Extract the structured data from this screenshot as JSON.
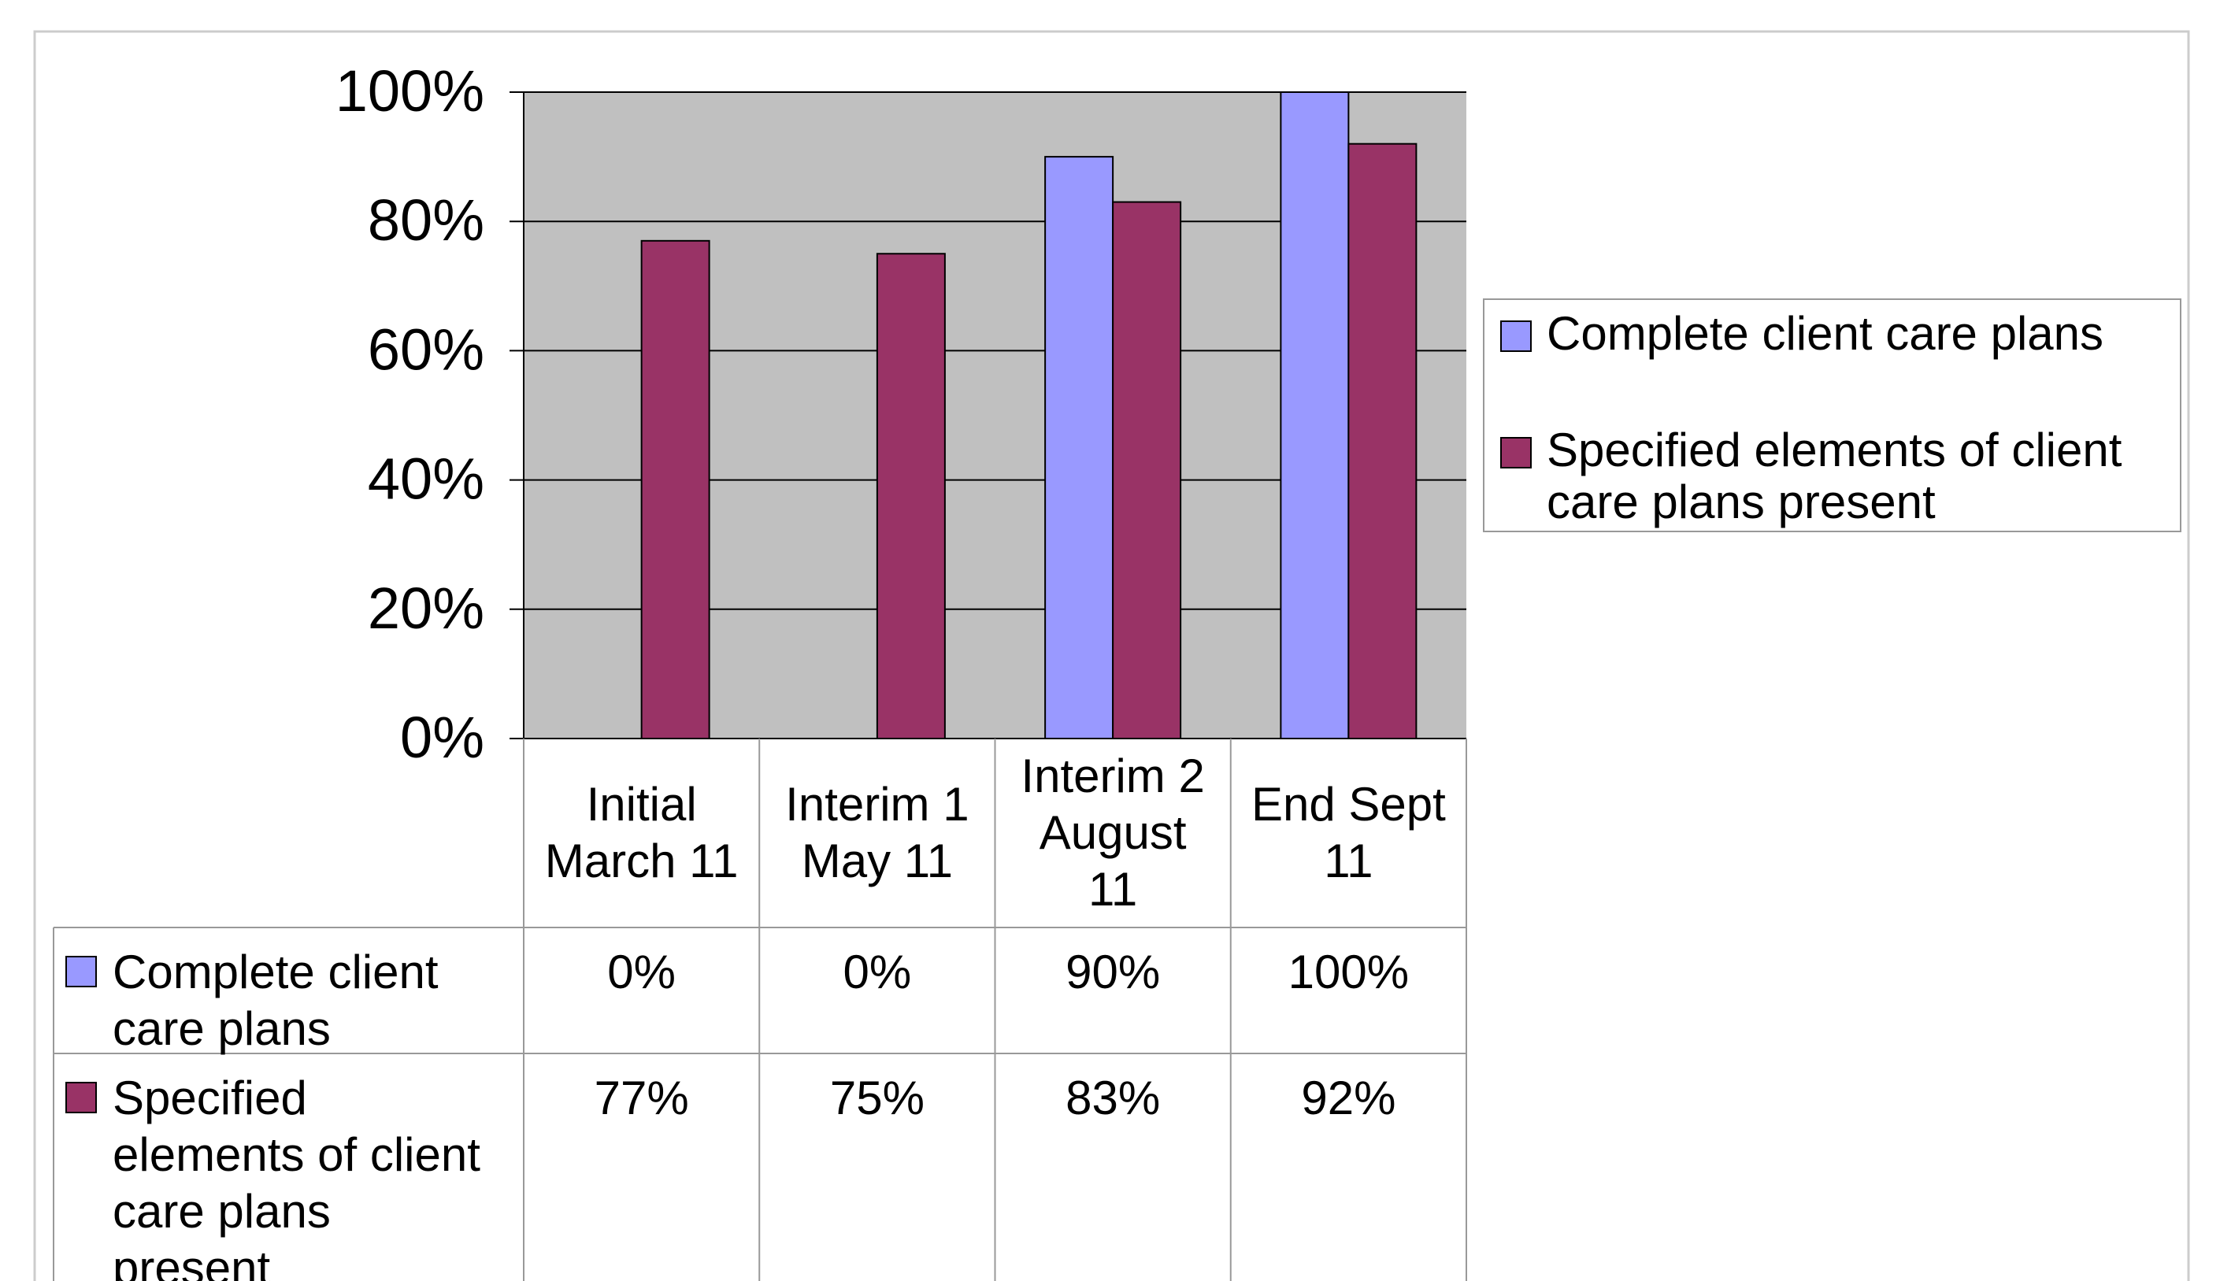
{
  "chart_data": {
    "type": "bar",
    "categories": [
      [
        "Initial",
        "March 11"
      ],
      [
        "Interim 1",
        "May 11"
      ],
      [
        "Interim 2",
        "August",
        "11"
      ],
      [
        "End Sept",
        "11"
      ]
    ],
    "series": [
      {
        "name": "Complete client care plans",
        "name_lines": [
          "Complete client",
          "care plans"
        ],
        "values": [
          0,
          0,
          90,
          100
        ],
        "labels": [
          "0%",
          "0%",
          "90%",
          "100%"
        ],
        "color": "#9999ff"
      },
      {
        "name": "Specified elements of client care plans present",
        "name_lines": [
          "Specified",
          "elements of client",
          "care plans",
          "present"
        ],
        "legend_lines": [
          "Specified elements of client",
          "care plans present"
        ],
        "values": [
          77,
          75,
          83,
          92
        ],
        "labels": [
          "77%",
          "75%",
          "83%",
          "92%"
        ],
        "color": "#993366"
      }
    ],
    "y_ticks": [
      "0%",
      "20%",
      "40%",
      "60%",
      "80%",
      "100%"
    ],
    "ylim": [
      0,
      100
    ],
    "grid": true,
    "plot_background": "#c0c0c0",
    "legend_position": "right",
    "data_table": true
  }
}
